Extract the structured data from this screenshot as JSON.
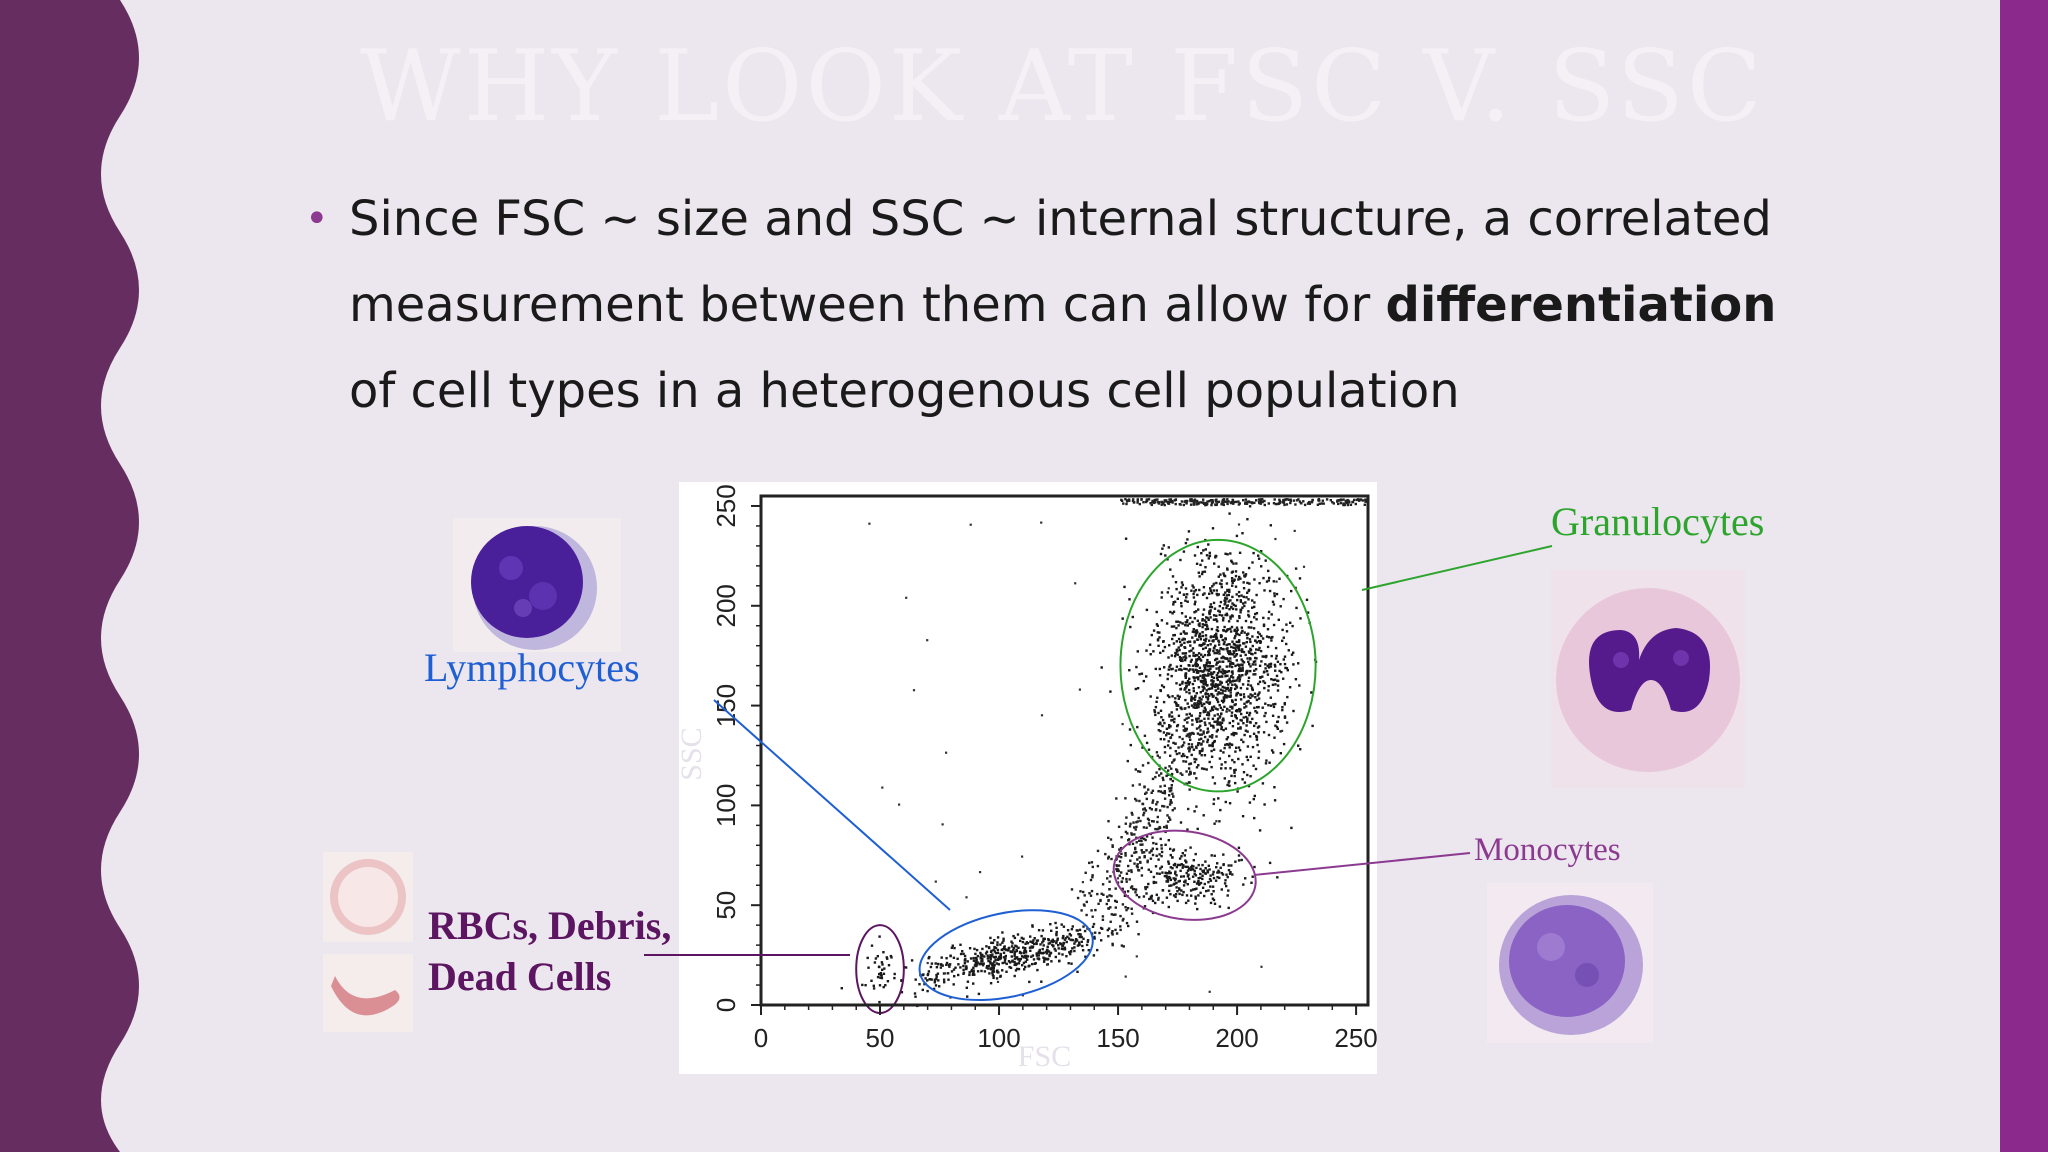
{
  "slide": {
    "title": "WHY LOOK AT FSC V. SSC",
    "bullet": {
      "part1": "Since FSC ~ size and SSC ~ internal structure, a correlated measurement between them can allow for ",
      "bold": "differentiation",
      "part2": " of cell types in a heterogenous cell population"
    }
  },
  "colors": {
    "left_band": "#662d61",
    "right_band": "#8b2a8c",
    "background": "#ece6ef",
    "lymphocytes": "#1f5fd4",
    "granulocytes": "#2da52d",
    "monocytes": "#8b3a8f",
    "rbcs": "#5c1560"
  },
  "labels": {
    "lymphocytes": "Lymphocytes",
    "granulocytes": "Granulocytes",
    "monocytes": "Monocytes",
    "rbcs_line1": "RBCs, Debris,",
    "rbcs_line2": "Dead Cells"
  },
  "chart_data": {
    "type": "scatter",
    "xlabel": "FSC",
    "ylabel": "SSC",
    "xlim": [
      0,
      255
    ],
    "ylim": [
      0,
      255
    ],
    "x_ticks": [
      0,
      50,
      100,
      150,
      200,
      250
    ],
    "y_ticks": [
      0,
      50,
      100,
      150,
      200,
      250
    ],
    "clusters": [
      {
        "name": "RBCs, Debris, Dead Cells",
        "center": [
          50,
          18
        ],
        "spread": [
          3,
          8
        ],
        "count": 40,
        "gate_radius": [
          10,
          22
        ]
      },
      {
        "name": "Lymphocytes",
        "center": [
          103,
          25
        ],
        "spread": [
          20,
          5
        ],
        "count": 520,
        "gate_radius": [
          37,
          21
        ],
        "tilt": [
          0.28
        ]
      },
      {
        "name": "Monocytes",
        "center": [
          178,
          65
        ],
        "spread": [
          12,
          8
        ],
        "count": 260,
        "gate_radius": [
          30,
          22
        ]
      },
      {
        "name": "Granulocytes",
        "center": [
          192,
          170
        ],
        "spread": [
          14,
          28
        ],
        "count": 1500,
        "gate_radius": [
          41,
          63
        ]
      }
    ]
  }
}
